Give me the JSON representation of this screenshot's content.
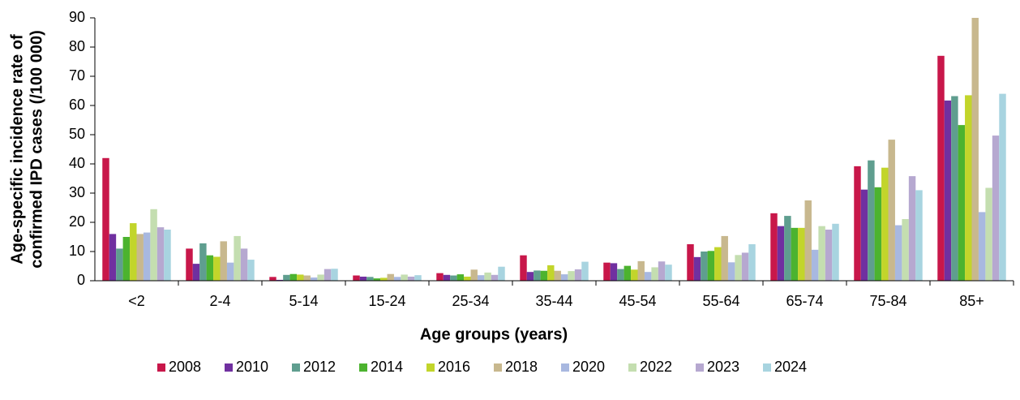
{
  "chart_data": {
    "type": "bar",
    "ylabel": [
      "Age-specific incidence rate of",
      "confirmed IPD cases (/100 000)"
    ],
    "xlabel": "Age groups (years)",
    "categories": [
      "<2",
      "2-4",
      "5-14",
      "15-24",
      "25-34",
      "35-44",
      "45-54",
      "55-64",
      "65-74",
      "75-84",
      "85+"
    ],
    "ylim": [
      0,
      90
    ],
    "yticks": [
      0,
      10,
      20,
      30,
      40,
      50,
      60,
      70,
      80,
      90
    ],
    "legend": "bottom",
    "series": [
      {
        "name": "2008",
        "color": "#c8174a",
        "values": [
          42,
          11,
          1.3,
          1.8,
          2.6,
          8.7,
          6.2,
          12.5,
          23.1,
          39.2,
          77
        ]
      },
      {
        "name": "2010",
        "color": "#7030a0",
        "values": [
          16,
          5.8,
          0.3,
          1.4,
          2,
          3,
          6,
          8.1,
          18.7,
          31.2,
          61.7
        ]
      },
      {
        "name": "2012",
        "color": "#5f9e8f",
        "values": [
          11,
          12.8,
          2,
          1.3,
          1.8,
          3.5,
          4,
          10,
          22.2,
          41.2,
          63.2
        ]
      },
      {
        "name": "2014",
        "color": "#4cb32f",
        "values": [
          15,
          8.7,
          2.3,
          0.8,
          2.2,
          3.4,
          5.1,
          10.2,
          18.1,
          32,
          53.3
        ]
      },
      {
        "name": "2016",
        "color": "#c2d52b",
        "values": [
          19.7,
          8.2,
          2.1,
          1,
          1.4,
          5.3,
          3.8,
          11.5,
          18.1,
          38.7,
          63.5
        ]
      },
      {
        "name": "2018",
        "color": "#c8b88e",
        "values": [
          16,
          13.5,
          1.8,
          2.3,
          3.8,
          3.4,
          6.7,
          15.3,
          27.5,
          48.3,
          90
        ]
      },
      {
        "name": "2020",
        "color": "#a8b8e0",
        "values": [
          16.5,
          6.2,
          1.1,
          1.3,
          1.9,
          2.2,
          3,
          6.3,
          10.6,
          19,
          23.5
        ]
      },
      {
        "name": "2022",
        "color": "#c4deb0",
        "values": [
          24.5,
          15.3,
          2.1,
          2.1,
          2.8,
          3.3,
          4.6,
          8.8,
          18.7,
          21.1,
          31.8
        ]
      },
      {
        "name": "2023",
        "color": "#b6a8d0",
        "values": [
          18.3,
          11,
          4,
          1.4,
          2,
          3.9,
          6.6,
          9.6,
          17.5,
          35.8,
          49.7
        ]
      },
      {
        "name": "2024",
        "color": "#a8d4e0",
        "values": [
          17.5,
          7.2,
          4.1,
          1.9,
          4.8,
          6.5,
          5.5,
          12.5,
          19.5,
          31,
          64
        ]
      }
    ]
  }
}
